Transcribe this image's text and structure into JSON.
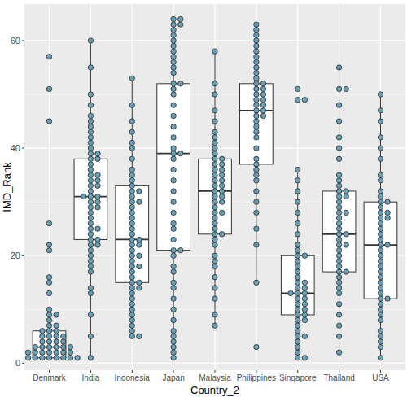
{
  "chart_data": {
    "type": "box",
    "x_label": "Country_2",
    "y_label": "IMD_Rank",
    "categories": [
      "Denmark",
      "India",
      "Indonesia",
      "Japan",
      "Malaysia",
      "Philippines",
      "Singapore",
      "Thailand",
      "USA"
    ],
    "ylim": [
      -1.3,
      66.8
    ],
    "yticks": [
      0,
      20,
      40,
      60
    ],
    "grid": true,
    "color": "#6a9fb5",
    "marker": "circle",
    "boxes": [
      {
        "low": 1,
        "q1": 1,
        "median": 3,
        "q3": 6,
        "high": 10
      },
      {
        "low": 1,
        "q1": 23,
        "median": 31,
        "q3": 38,
        "high": 60
      },
      {
        "low": 5,
        "q1": 15,
        "median": 23,
        "q3": 33,
        "high": 53
      },
      {
        "low": 1,
        "q1": 21,
        "median": 39,
        "q3": 52,
        "high": 64
      },
      {
        "low": 7,
        "q1": 24,
        "median": 32,
        "q3": 38,
        "high": 58
      },
      {
        "low": 15,
        "q1": 37,
        "median": 47,
        "q3": 52,
        "high": 63
      },
      {
        "low": 1,
        "q1": 9,
        "median": 13,
        "q3": 20,
        "high": 36
      },
      {
        "low": 2,
        "q1": 17,
        "median": 24,
        "q3": 32,
        "high": 55
      },
      {
        "low": 1,
        "q1": 12,
        "median": 22,
        "q3": 30,
        "high": 50
      }
    ],
    "points": [
      [
        1,
        1,
        1,
        1,
        1,
        1,
        1,
        1,
        2,
        2,
        2,
        2,
        2,
        2,
        2,
        3,
        3,
        3,
        3,
        3,
        3,
        4,
        4,
        4,
        4,
        5,
        5,
        5,
        5,
        6,
        6,
        6,
        7,
        7,
        8,
        9,
        9,
        10,
        13,
        15,
        16,
        21,
        22,
        26,
        45,
        51,
        57
      ],
      [
        1,
        5,
        9,
        13,
        14,
        17,
        18,
        19,
        20,
        21,
        22,
        22,
        23,
        23,
        24,
        25,
        25,
        26,
        27,
        28,
        29,
        29,
        30,
        30,
        31,
        31,
        31,
        32,
        33,
        33,
        34,
        34,
        35,
        35,
        36,
        37,
        38,
        38,
        39,
        39,
        40,
        41,
        42,
        43,
        44,
        45,
        46,
        48,
        50,
        55,
        60
      ],
      [
        5,
        5,
        6,
        7,
        8,
        9,
        10,
        11,
        12,
        13,
        14,
        14,
        15,
        15,
        16,
        17,
        18,
        18,
        19,
        20,
        20,
        21,
        22,
        22,
        23,
        23,
        24,
        25,
        26,
        27,
        28,
        29,
        30,
        30,
        31,
        32,
        32,
        33,
        34,
        35,
        36,
        38,
        40,
        41,
        43,
        45,
        48,
        53
      ],
      [
        1,
        2,
        3,
        4,
        5,
        6,
        8,
        10,
        12,
        14,
        15,
        17,
        18,
        20,
        21,
        21,
        23,
        25,
        26,
        28,
        30,
        32,
        34,
        36,
        38,
        39,
        39,
        40,
        42,
        44,
        46,
        48,
        50,
        51,
        52,
        52,
        54,
        55,
        56,
        57,
        58,
        59,
        60,
        61,
        62,
        63,
        63,
        64,
        64
      ],
      [
        7,
        9,
        12,
        14,
        16,
        18,
        19,
        20,
        22,
        23,
        24,
        24,
        25,
        26,
        27,
        28,
        28,
        29,
        30,
        30,
        31,
        31,
        32,
        32,
        33,
        33,
        34,
        34,
        35,
        35,
        36,
        36,
        37,
        37,
        38,
        38,
        39,
        40,
        41,
        42,
        43,
        45,
        47,
        50,
        52,
        58
      ],
      [
        3,
        15,
        22,
        25,
        28,
        30,
        32,
        34,
        35,
        36,
        37,
        38,
        40,
        42,
        43,
        44,
        45,
        46,
        46,
        47,
        47,
        48,
        48,
        49,
        49,
        50,
        50,
        51,
        51,
        52,
        52,
        53,
        54,
        55,
        56,
        57,
        58,
        59,
        60,
        61,
        62,
        63
      ],
      [
        1,
        1,
        2,
        3,
        4,
        5,
        5,
        6,
        7,
        8,
        8,
        9,
        9,
        10,
        10,
        11,
        11,
        12,
        12,
        13,
        13,
        13,
        14,
        14,
        15,
        15,
        16,
        17,
        18,
        19,
        20,
        20,
        21,
        22,
        24,
        26,
        28,
        30,
        32,
        34,
        36,
        49,
        49,
        51
      ],
      [
        2,
        5,
        7,
        9,
        11,
        13,
        14,
        15,
        16,
        17,
        17,
        18,
        19,
        20,
        21,
        22,
        22,
        23,
        24,
        24,
        25,
        26,
        27,
        28,
        28,
        29,
        30,
        31,
        31,
        32,
        32,
        33,
        34,
        35,
        38,
        40,
        42,
        45,
        48,
        51,
        51,
        55
      ],
      [
        1,
        3,
        4,
        5,
        6,
        8,
        9,
        10,
        11,
        12,
        12,
        13,
        14,
        15,
        16,
        17,
        18,
        19,
        20,
        21,
        22,
        22,
        23,
        24,
        25,
        26,
        27,
        27,
        28,
        28,
        29,
        30,
        30,
        31,
        32,
        34,
        35,
        38,
        40,
        42,
        45,
        47,
        50
      ]
    ]
  }
}
